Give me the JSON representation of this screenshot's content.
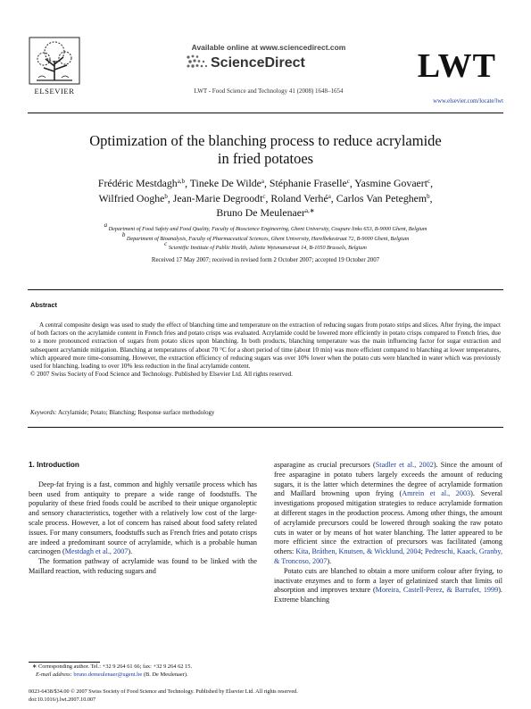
{
  "header": {
    "publisher": "ELSEVIER",
    "available_online": "Available online at www.sciencedirect.com",
    "sciencedirect": "ScienceDirect",
    "journal_ref": "LWT - Food Science and Technology 41 (2008) 1648–1654",
    "journal_abbr": "LWT",
    "journal_url": "www.elsevier.com/locate/lwt"
  },
  "article": {
    "title_line1": "Optimization of the blanching process to reduce acrylamide",
    "title_line2": "in fried potatoes",
    "authors": [
      {
        "name": "Frédéric Mestdagh",
        "sup": "a,b",
        "sep": ", "
      },
      {
        "name": "Tineke De Wilde",
        "sup": "a",
        "sep": ", "
      },
      {
        "name": "Stéphanie Fraselle",
        "sup": "c",
        "sep": ", "
      },
      {
        "name": "Yasmine Govaert",
        "sup": "c",
        "sep": ","
      },
      {
        "name": "Wilfried Ooghe",
        "sup": "b",
        "sep": ", "
      },
      {
        "name": "Jean-Marie Degroodt",
        "sup": "c",
        "sep": ", "
      },
      {
        "name": "Roland Verhé",
        "sup": "a",
        "sep": ", "
      },
      {
        "name": "Carlos Van Peteghem",
        "sup": "b",
        "sep": ","
      },
      {
        "name": "Bruno De Meulenaer",
        "sup": "a,∗",
        "sep": ""
      }
    ],
    "affiliations": [
      {
        "sup": "a",
        "text": "Department of Food Safety and Food Quality, Faculty of Bioscience Engineering, Ghent University, Coupure links 653, B-9000 Ghent, Belgium"
      },
      {
        "sup": "b",
        "text": "Department of Bioanalysis, Faculty of Pharmaceutical Sciences, Ghent University, Harelbekestraat 72, B-9000 Ghent, Belgium"
      },
      {
        "sup": "c",
        "text": "Scientific Institute of Public Health, Juliette Wytsmanstraat 14, B-1050 Brussels, Belgium"
      }
    ],
    "received": "Received 17 May 2007; received in revised form 2 October 2007; accepted 19 October 2007"
  },
  "abstract": {
    "heading": "Abstract",
    "text": "A central composite design was used to study the effect of blanching time and temperature on the extraction of reducing sugars from potato strips and slices. After frying, the impact of both factors on the acrylamide content in French fries and potato crisps was evaluated. Acrylamide could be lowered more efficiently in potato crisps compared to French fries, due to a more pronounced extraction of sugars from potato slices upon blanching. In both products, blanching temperature was the main influencing factor for sugar extraction and subsequent acrylamide mitigation. Blanching at temperatures of about 70 °C for a short period of time (about 10 min) was more efficient compared to blanching at lower temperatures, which appeared more time-consuming. However, the extraction efficiency of reducing sugars was over 10% lower when the potato cuts were blanched in water which was previously used for blanching, leading to over 10% less reduction in the final acrylamide content.",
    "copyright": "© 2007 Swiss Society of Food Science and Technology. Published by Elsevier Ltd. All rights reserved.",
    "keywords_label": "Keywords:",
    "keywords": "Acrylamide; Potato; Blanching; Response surface methodology"
  },
  "body": {
    "section_heading": "1. Introduction",
    "left_p1": "Deep-fat frying is a fast, common and highly versatile process which has been used from antiquity to prepare a wide range of foodstuffs. The popularity of these fried foods could be ascribed to their unique organoleptic and sensory characteristics, together with a relatively low cost of the large-scale process. However, a lot of concern has raised about food safety related issues. For many consumers, foodstuffs such as French fries and potato crisps are indeed a predominant source of acrylamide, which is a probable human carcinogen (",
    "left_p1_ref": "Mestdagh et al., 2007",
    "left_p1_end": ").",
    "left_p2": "The formation pathway of acrylamide was found to be linked with the Maillard reaction, with reducing sugars and",
    "right_p1_a": "asparagine as crucial precursors (",
    "right_p1_ref1": "Stadler et al., 2002",
    "right_p1_b": "). Since the amount of free asparagine in potato tubers largely exceeds the amount of reducing sugars, it is the latter which determines the degree of acrylamide formation and Maillard browning upon frying (",
    "right_p1_ref2": "Amrein et al., 2003",
    "right_p1_c": "). Several investigations proposed mitigation strategies to reduce acrylamide formation at different stages in the production process. Among other things, the amount of acrylamide precursors could be lowered through soaking the raw potato cuts in water or by means of hot water blanching. The latter appeared to be more efficient since the extraction of precursors was facilitated (among others: ",
    "right_p1_ref3": "Kita, Bråthen, Knutsen, & Wicklund, 2004",
    "right_p1_d": "; ",
    "right_p1_ref4": "Pedreschi, Kaack, Granby, & Troncoso, 2007",
    "right_p1_e": ").",
    "right_p2_a": "Potato cuts are blanched to obtain a more uniform colour after frying, to inactivate enzymes and to form a layer of gelatinized starch that limits oil absorption and improves texture (",
    "right_p2_ref": "Moreira, Castell-Perez, & Barrufet, 1999",
    "right_p2_b": "). Extreme blanching"
  },
  "footnote": {
    "marker": "∗",
    "corresponding": "Corresponding author. Tel.: +32 9 264 61 66; fax: +32 9 264 62 15.",
    "email_label": "E-mail address:",
    "email": "bruno.demeulenaer@ugent.be",
    "email_suffix": "(B. De Meulenaer)."
  },
  "footer": {
    "line1": "0023-6438/$34.00 © 2007 Swiss Society of Food Science and Technology. Published by Elsevier Ltd. All rights reserved.",
    "line2": "doi:10.1016/j.lwt.2007.10.007"
  },
  "colors": {
    "link": "#1a3fa0",
    "text": "#111111"
  }
}
